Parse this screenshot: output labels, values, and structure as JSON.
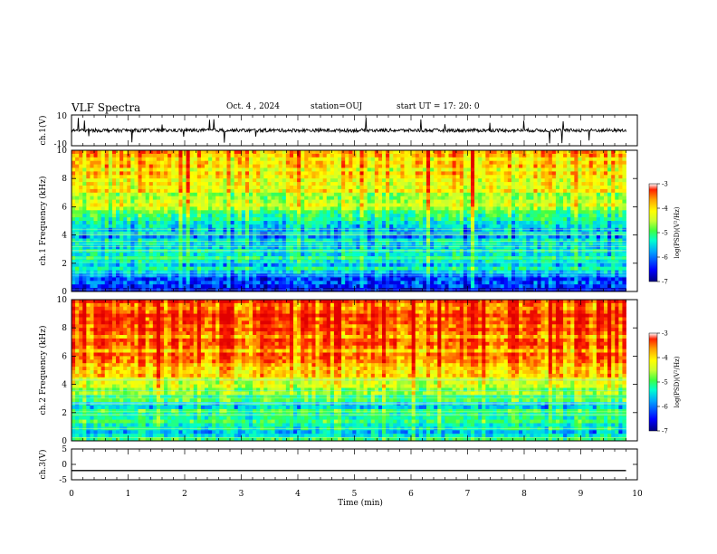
{
  "header": {
    "title": "VLF Spectra",
    "date": "Oct. 4 , 2024",
    "station": "station=OUJ",
    "start": "start UT = 17: 20: 0"
  },
  "chart_data": [
    {
      "type": "line",
      "panel": "ch1-waveform",
      "ylabel": "ch.1(V)",
      "yticks": [
        "10",
        "-10"
      ],
      "ylim": [
        -10,
        10
      ],
      "x": [
        0,
        10
      ],
      "approx_level_V": 0,
      "style": "dense noisy trace near 0 V with sporadic spikes"
    },
    {
      "type": "heatmap",
      "panel": "ch1-spectrogram",
      "ylabel": "ch.1 Frequency (kHz)",
      "yticks": [
        "0",
        "2",
        "4",
        "6",
        "8",
        "10"
      ],
      "ylim": [
        0,
        10
      ],
      "xlim": [
        0,
        10
      ],
      "colorbar": {
        "label": "log(PSD)(V²/Hz)",
        "ticks": [
          "-3",
          "-4",
          "-5",
          "-6",
          "-7"
        ],
        "range": [
          -7,
          -3
        ]
      },
      "profile_kHz_logPSD": [
        [
          0.2,
          -6.6
        ],
        [
          1.0,
          -6.3
        ],
        [
          1.5,
          -5.6
        ],
        [
          2.0,
          -5.7
        ],
        [
          3.0,
          -5.6
        ],
        [
          4.5,
          -6.0
        ],
        [
          5.5,
          -5.0
        ],
        [
          7.0,
          -4.6
        ],
        [
          8.5,
          -4.3
        ],
        [
          10.0,
          -4.2
        ]
      ]
    },
    {
      "type": "heatmap",
      "panel": "ch2-spectrogram",
      "ylabel": "ch.2 Frequency (kHz)",
      "yticks": [
        "0",
        "2",
        "4",
        "6",
        "8",
        "10"
      ],
      "ylim": [
        0,
        10
      ],
      "xlim": [
        0,
        10
      ],
      "colorbar": {
        "label": "log(PSD)(V²/Hz)",
        "ticks": [
          "-3",
          "-4",
          "-5",
          "-6",
          "-7"
        ],
        "range": [
          -7,
          -3
        ]
      },
      "profile_kHz_logPSD": [
        [
          0.2,
          -5.6
        ],
        [
          1.0,
          -5.8
        ],
        [
          1.5,
          -5.2
        ],
        [
          2.5,
          -5.6
        ],
        [
          3.5,
          -5.0
        ],
        [
          4.0,
          -4.4
        ],
        [
          6.0,
          -3.9
        ],
        [
          8.0,
          -3.6
        ],
        [
          10.0,
          -3.5
        ]
      ]
    },
    {
      "type": "line",
      "panel": "ch3-waveform",
      "ylabel": "ch.3(V)",
      "yticks": [
        "5",
        "0",
        "-5"
      ],
      "ylim": [
        -5,
        5
      ],
      "x": [
        0,
        9.8
      ],
      "y": [
        -2,
        -2
      ]
    }
  ],
  "xaxis": {
    "label": "Time (min)",
    "ticks": [
      "0",
      "1",
      "2",
      "3",
      "4",
      "5",
      "6",
      "7",
      "8",
      "9",
      "10"
    ],
    "range": [
      0,
      10
    ],
    "data_end_min": 9.8
  },
  "colors": {
    "background": "#ffffff",
    "axes": "#000000",
    "colormap": [
      "#000080",
      "#0000ff",
      "#00a0ff",
      "#00ffd0",
      "#40ff40",
      "#c8ff30",
      "#ffff00",
      "#ffa000",
      "#ff2000",
      "#e00000"
    ]
  }
}
